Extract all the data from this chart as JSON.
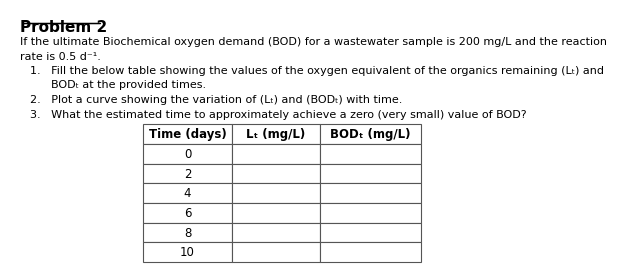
{
  "title": "Problem 2",
  "para1": "If the ultimate Biochemical oxygen demand (BOD) for a wastewater sample is 200 mg/L and the reaction",
  "para2": "rate is 0.5 d⁻¹.",
  "item1a": "1.   Fill the below table showing the values of the oxygen equivalent of the organics remaining (Lₜ) and",
  "item1b": "      BODₜ at the provided times.",
  "item2": "2.   Plot a curve showing the variation of (Lₜ) and (BODₜ) with time.",
  "item3": "3.   What the estimated time to approximately achieve a zero (very small) value of BOD?",
  "col1_header": "Time (days)",
  "col2_header": "Lₜ (mg/L)",
  "col3_header": "BODₜ (mg/L)",
  "time_values": [
    "0",
    "2",
    "4",
    "6",
    "8",
    "10"
  ],
  "bg_color": "#ffffff",
  "text_color": "#000000"
}
